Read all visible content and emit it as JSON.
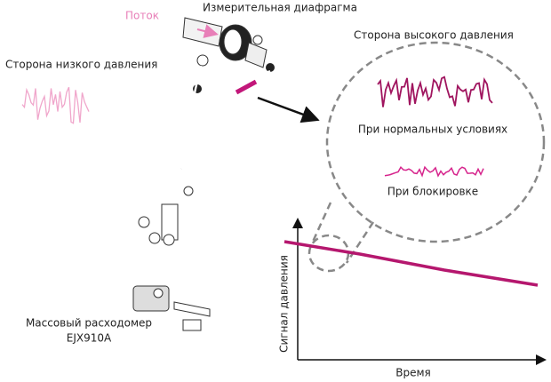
{
  "labels": {
    "flow": "Поток",
    "orifice": "Измерительная диафрагма",
    "low_side": "Сторона низкого давления",
    "high_side": "Сторона высокого давления",
    "flowmeter": [
      "Массовый расходомер",
      "EJX910A"
    ]
  },
  "inset": {
    "normal": "При нормальных условиях",
    "blocked": "При блокировке"
  },
  "chart": {
    "y_label": "Сигнал давления",
    "x_label": "Время"
  }
}
